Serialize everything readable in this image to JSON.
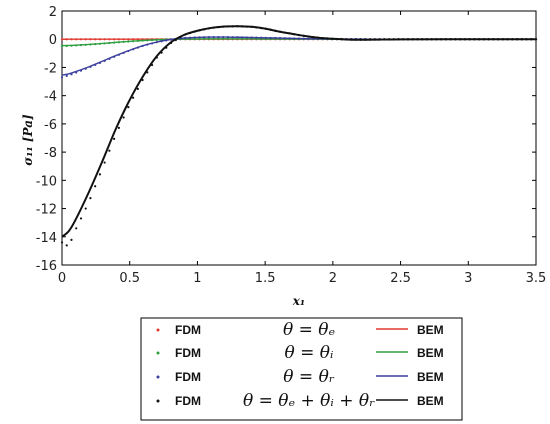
{
  "chart_data": {
    "type": "line",
    "title": "",
    "xlabel": "x₁",
    "ylabel": "σ₁₁ [Pa]",
    "xlim": [
      0,
      3.5
    ],
    "ylim": [
      -16,
      2
    ],
    "x_ticks": [
      0,
      0.5,
      1,
      1.5,
      2,
      2.5,
      3,
      3.5
    ],
    "x_tick_labels": [
      "0",
      "0.5",
      "1",
      "1.5",
      "2",
      "2.5",
      "3",
      "3.5"
    ],
    "y_ticks": [
      -16,
      -14,
      -12,
      -10,
      -8,
      -6,
      -4,
      -2,
      0,
      2
    ],
    "y_tick_labels": [
      "-16",
      "-14",
      "-12",
      "-10",
      "-8",
      "-6",
      "-4",
      "-2",
      "0",
      "2"
    ],
    "grid": false,
    "legend_position": "bottom-center",
    "x": [
      0,
      0.05,
      0.1,
      0.2,
      0.3,
      0.4,
      0.5,
      0.6,
      0.7,
      0.8,
      0.9,
      1.0,
      1.1,
      1.2,
      1.3,
      1.4,
      1.5,
      1.6,
      1.7,
      1.8,
      1.9,
      2.0,
      2.1,
      2.2,
      2.3,
      2.5,
      3.0,
      3.5
    ],
    "series": [
      {
        "theta_label": "θ = θₑ",
        "fdm_label": "FDM",
        "bem_label": "BEM",
        "color": "#e03a2f",
        "bem": [
          0,
          0,
          0,
          0,
          0,
          0,
          0,
          0,
          0,
          0,
          0,
          0,
          0,
          0,
          0,
          0,
          0,
          0,
          0,
          0,
          0,
          0,
          0,
          0,
          0,
          0,
          0,
          0
        ],
        "fdm": [
          0,
          0,
          0,
          0,
          0,
          0,
          0,
          0,
          0,
          0,
          0,
          0,
          0,
          0,
          0,
          0,
          0,
          0,
          0,
          0,
          0,
          0,
          0,
          0,
          0,
          0,
          0,
          0
        ]
      },
      {
        "theta_label": "θ = θᵢ",
        "fdm_label": "FDM",
        "bem_label": "BEM",
        "color": "#2e9e3e",
        "bem": [
          -0.45,
          -0.44,
          -0.42,
          -0.37,
          -0.3,
          -0.22,
          -0.15,
          -0.09,
          -0.04,
          -0.01,
          0.01,
          0.02,
          0.03,
          0.03,
          0.03,
          0.03,
          0.02,
          0.02,
          0.01,
          0.01,
          0.01,
          0,
          0,
          0,
          0,
          0,
          0,
          0
        ],
        "fdm": [
          -0.5,
          -0.47,
          -0.44,
          -0.38,
          -0.31,
          -0.23,
          -0.16,
          -0.09,
          -0.05,
          -0.01,
          0.01,
          0.02,
          0.03,
          0.03,
          0.03,
          0.03,
          0.02,
          0.02,
          0.01,
          0.01,
          0.01,
          0,
          0,
          0,
          0,
          0,
          0,
          0
        ]
      },
      {
        "theta_label": "θ = θᵣ",
        "fdm_label": "FDM",
        "bem_label": "BEM",
        "color": "#3b3f9c",
        "bem": [
          -2.55,
          -2.45,
          -2.3,
          -1.95,
          -1.55,
          -1.15,
          -0.78,
          -0.45,
          -0.2,
          -0.02,
          0.08,
          0.13,
          0.15,
          0.15,
          0.14,
          0.12,
          0.1,
          0.08,
          0.06,
          0.04,
          0.03,
          0.02,
          0.01,
          0.01,
          0,
          0,
          0,
          0
        ],
        "fdm": [
          -2.7,
          -2.55,
          -2.38,
          -2.0,
          -1.6,
          -1.18,
          -0.8,
          -0.46,
          -0.21,
          -0.03,
          0.08,
          0.13,
          0.15,
          0.15,
          0.14,
          0.12,
          0.1,
          0.08,
          0.06,
          0.04,
          0.03,
          0.02,
          0.01,
          0.01,
          0,
          0,
          0,
          0
        ]
      },
      {
        "theta_label": "θ = θₑ + θᵢ + θᵣ",
        "fdm_label": "FDM",
        "bem_label": "BEM",
        "color": "#111111",
        "bem": [
          -14.0,
          -13.6,
          -12.8,
          -10.8,
          -8.6,
          -6.3,
          -4.3,
          -2.6,
          -1.2,
          -0.25,
          0.3,
          0.6,
          0.8,
          0.9,
          0.92,
          0.88,
          0.75,
          0.55,
          0.38,
          0.22,
          0.1,
          0.03,
          -0.02,
          -0.04,
          -0.03,
          -0.01,
          0,
          0
        ],
        "fdm": [
          -14.4,
          -14.7,
          -13.5,
          -11.5,
          -9.1,
          -6.7,
          -4.6,
          -2.8,
          -1.3,
          -0.3,
          0.3,
          0.6,
          0.8,
          0.9,
          0.92,
          0.88,
          0.75,
          0.55,
          0.38,
          0.22,
          0.1,
          0.03,
          -0.02,
          -0.04,
          -0.03,
          -0.01,
          0,
          0
        ]
      }
    ]
  }
}
